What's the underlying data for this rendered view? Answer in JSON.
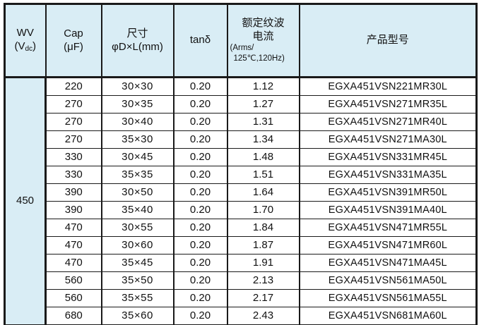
{
  "colors": {
    "header_bg": "#d9edf5",
    "border": "#1a1a1a",
    "row_bg": "#ffffff",
    "text": "#111111"
  },
  "table": {
    "wv_value": "450",
    "headers": {
      "wv": {
        "line1": "WV",
        "line2_pre": "(V",
        "line2_sub": "dc",
        "line2_post": ")"
      },
      "cap": {
        "line1": "Cap",
        "line2": "(μF)"
      },
      "size": {
        "line1": "尺寸",
        "line2": "φD×L(mm)"
      },
      "tand": {
        "line1": "tanδ"
      },
      "ripple": {
        "line1": "额定纹波",
        "line2": "电流",
        "line3": "(Arms/",
        "line4": "125℃,120Hz)"
      },
      "model": {
        "line1": "产品型号"
      }
    },
    "rows": [
      [
        "220",
        "30×30",
        "0.20",
        "1.12",
        "EGXA451VSN221MR30L"
      ],
      [
        "270",
        "30×35",
        "0.20",
        "1.27",
        "EGXA451VSN271MR35L"
      ],
      [
        "270",
        "30×40",
        "0.20",
        "1.31",
        "EGXA451VSN271MR40L"
      ],
      [
        "270",
        "35×30",
        "0.20",
        "1.34",
        "EGXA451VSN271MA30L"
      ],
      [
        "330",
        "30×45",
        "0.20",
        "1.48",
        "EGXA451VSN331MR45L"
      ],
      [
        "330",
        "35×35",
        "0.20",
        "1.51",
        "EGXA451VSN331MA35L"
      ],
      [
        "390",
        "30×50",
        "0.20",
        "1.64",
        "EGXA451VSN391MR50L"
      ],
      [
        "390",
        "35×40",
        "0.20",
        "1.70",
        "EGXA451VSN391MA40L"
      ],
      [
        "470",
        "30×55",
        "0.20",
        "1.84",
        "EGXA451VSN471MR55L"
      ],
      [
        "470",
        "30×60",
        "0.20",
        "1.87",
        "EGXA451VSN471MR60L"
      ],
      [
        "470",
        "35×45",
        "0.20",
        "1.91",
        "EGXA451VSN471MA45L"
      ],
      [
        "560",
        "35×50",
        "0.20",
        "2.13",
        "EGXA451VSN561MA50L"
      ],
      [
        "560",
        "35×55",
        "0.20",
        "2.17",
        "EGXA451VSN561MA55L"
      ],
      [
        "680",
        "35×60",
        "0.20",
        "2.43",
        "EGXA451VSN681MA60L"
      ]
    ]
  }
}
